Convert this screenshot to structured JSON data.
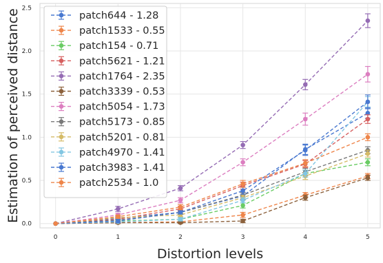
{
  "chart_data": {
    "type": "line",
    "title": "",
    "xlabel": "Distortion levels",
    "ylabel": "Estimation of perceived distance",
    "xlim": [
      -0.25,
      5.2
    ],
    "ylim": [
      -0.05,
      2.55
    ],
    "xticks": [
      "0",
      "1",
      "2",
      "3",
      "4",
      "5"
    ],
    "yticks": [
      "0.0",
      "0.5",
      "1.0",
      "1.5",
      "2.0",
      "2.5"
    ],
    "grid": true,
    "legend_position": "top-left",
    "x": [
      0,
      1,
      2,
      3,
      4,
      5
    ],
    "series": [
      {
        "name": "patch644 - 1.28",
        "color": "#4878d0",
        "values": [
          0,
          0.06,
          0.13,
          0.32,
          0.86,
          1.28
        ],
        "err": [
          0,
          0.02,
          0.02,
          0.04,
          0.06,
          0.06
        ]
      },
      {
        "name": "patch1533 - 0.55",
        "color": "#ee854a",
        "values": [
          0,
          0.01,
          0.02,
          0.1,
          0.33,
          0.55
        ],
        "err": [
          0,
          0.01,
          0.01,
          0.03,
          0.03,
          0.03
        ]
      },
      {
        "name": "patch154 - 0.71",
        "color": "#6acc64",
        "values": [
          0,
          0.03,
          0.05,
          0.21,
          0.58,
          0.71
        ],
        "err": [
          0,
          0.01,
          0.02,
          0.03,
          0.04,
          0.04
        ]
      },
      {
        "name": "patch5621 - 1.21",
        "color": "#d65f5f",
        "values": [
          0,
          0.05,
          0.17,
          0.44,
          0.69,
          1.21
        ],
        "err": [
          0,
          0.02,
          0.03,
          0.04,
          0.04,
          0.05
        ]
      },
      {
        "name": "patch1764 - 2.35",
        "color": "#956cb4",
        "values": [
          0,
          0.17,
          0.41,
          0.91,
          1.61,
          2.35
        ],
        "err": [
          0,
          0.03,
          0.03,
          0.04,
          0.06,
          0.08
        ]
      },
      {
        "name": "patch3339 - 0.53",
        "color": "#8c613c",
        "values": [
          0,
          0.01,
          0.01,
          0.03,
          0.3,
          0.53
        ],
        "err": [
          0,
          0.01,
          0.01,
          0.02,
          0.03,
          0.03
        ]
      },
      {
        "name": "patch5054 - 1.73",
        "color": "#dc7ec0",
        "values": [
          0,
          0.1,
          0.27,
          0.71,
          1.21,
          1.73
        ],
        "err": [
          0,
          0.02,
          0.03,
          0.04,
          0.07,
          0.09
        ]
      },
      {
        "name": "patch5173 - 0.85",
        "color": "#797979",
        "values": [
          0,
          0.04,
          0.13,
          0.33,
          0.6,
          0.85
        ],
        "err": [
          0,
          0.02,
          0.02,
          0.03,
          0.04,
          0.04
        ]
      },
      {
        "name": "patch5201 - 0.81",
        "color": "#d5bb67",
        "values": [
          0,
          0.07,
          0.1,
          0.3,
          0.55,
          0.81
        ],
        "err": [
          0,
          0.02,
          0.02,
          0.03,
          0.04,
          0.04
        ]
      },
      {
        "name": "patch4970 - 1.41",
        "color": "#82c6e2",
        "values": [
          0,
          0.02,
          0.05,
          0.27,
          0.58,
          1.41
        ],
        "err": [
          0,
          0.01,
          0.02,
          0.03,
          0.04,
          0.06
        ]
      },
      {
        "name": "patch3983 - 1.41",
        "color": "#4878d0",
        "values": [
          0,
          0.03,
          0.13,
          0.38,
          0.85,
          1.41
        ],
        "err": [
          0,
          0.02,
          0.02,
          0.04,
          0.06,
          0.08
        ]
      },
      {
        "name": "patch2534 - 1.0",
        "color": "#ee854a",
        "values": [
          0,
          0.08,
          0.19,
          0.46,
          0.7,
          1.0
        ],
        "err": [
          0,
          0.02,
          0.03,
          0.04,
          0.04,
          0.04
        ]
      }
    ]
  }
}
